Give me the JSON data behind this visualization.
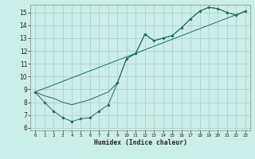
{
  "title": "",
  "xlabel": "Humidex (Indice chaleur)",
  "bg_color": "#cceee8",
  "grid_color": "#aacccc",
  "line_color": "#1a6b5a",
  "xlim": [
    -0.5,
    23.5
  ],
  "ylim": [
    5.8,
    15.6
  ],
  "yticks": [
    6,
    7,
    8,
    9,
    10,
    11,
    12,
    13,
    14,
    15
  ],
  "xticks": [
    0,
    1,
    2,
    3,
    4,
    5,
    6,
    7,
    8,
    9,
    10,
    11,
    12,
    13,
    14,
    15,
    16,
    17,
    18,
    19,
    20,
    21,
    22,
    23
  ],
  "line1_x": [
    0,
    1,
    2,
    3,
    4,
    5,
    6,
    7,
    8,
    9,
    10,
    11,
    12,
    13,
    14,
    15,
    16,
    17,
    18,
    19,
    20,
    21,
    22,
    23
  ],
  "line1_y": [
    8.8,
    8.0,
    7.3,
    6.8,
    6.5,
    6.7,
    6.8,
    7.3,
    7.8,
    9.5,
    11.4,
    11.8,
    13.3,
    12.8,
    13.0,
    13.2,
    13.8,
    14.5,
    15.1,
    15.4,
    15.3,
    15.0,
    14.8,
    15.1
  ],
  "line2_x": [
    0,
    23
  ],
  "line2_y": [
    8.8,
    15.1
  ],
  "line3_x": [
    0,
    1,
    2,
    3,
    4,
    5,
    6,
    7,
    8,
    9,
    10,
    11,
    12,
    13,
    14,
    15,
    16,
    17,
    18,
    19,
    20,
    21,
    22,
    23
  ],
  "line3_y": [
    8.8,
    8.5,
    8.3,
    8.0,
    7.8,
    8.0,
    8.2,
    8.5,
    8.8,
    9.5,
    11.4,
    11.8,
    13.3,
    12.8,
    13.0,
    13.2,
    13.8,
    14.5,
    15.1,
    15.4,
    15.3,
    15.0,
    14.8,
    15.1
  ]
}
